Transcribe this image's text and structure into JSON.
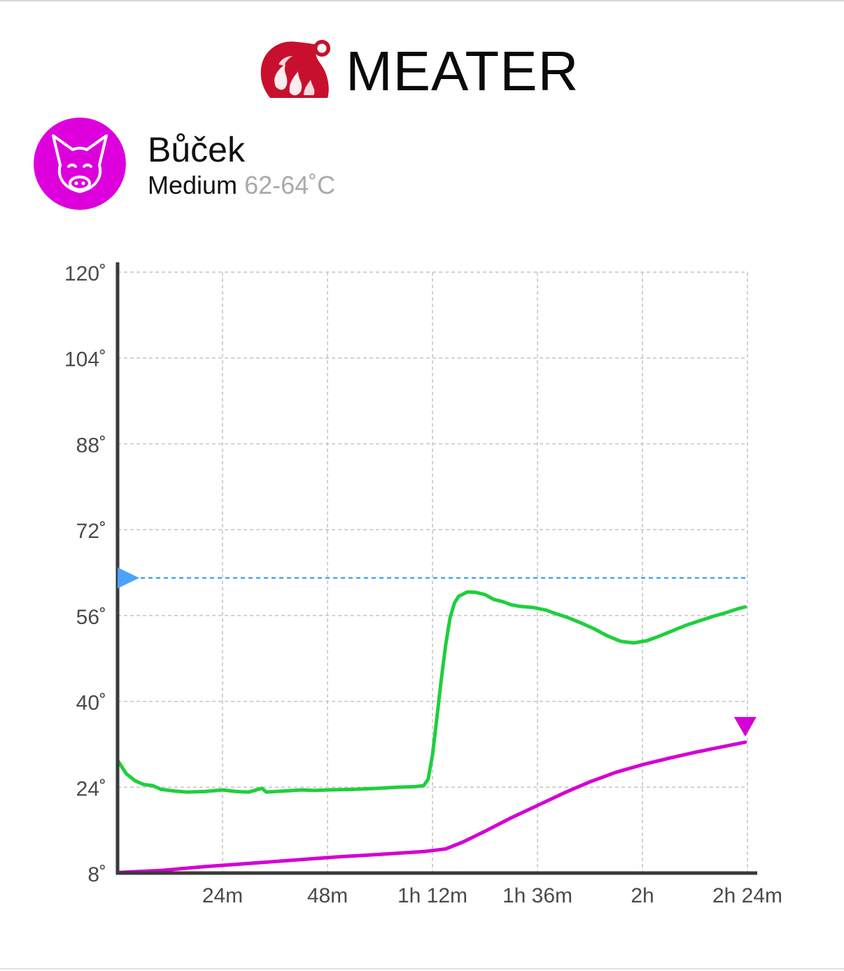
{
  "brand": {
    "name": "MEATER",
    "logo_icon": "meater-flame-logo-icon",
    "color": "#c8102e"
  },
  "meat": {
    "name": "Bůček",
    "doneness": "Medium",
    "range": "62-64˚C",
    "icon": "pig-face-icon",
    "color": "#dd00dd"
  },
  "chart_data": {
    "type": "line",
    "x_ticks": [
      "24m",
      "48m",
      "1h 12m",
      "1h 36m",
      "2h",
      "2h 24m"
    ],
    "y_ticks": [
      "8˚",
      "24˚",
      "40˚",
      "56˚",
      "72˚",
      "88˚",
      "104˚",
      "120˚"
    ],
    "xlim_minutes": [
      0,
      144
    ],
    "ylim": [
      8,
      120
    ],
    "grid": true,
    "target_temperature": 63,
    "series": [
      {
        "role": "ambient",
        "color": "#1fcf3d",
        "points": [
          [
            0,
            29
          ],
          [
            2,
            26.5
          ],
          [
            4,
            25.2
          ],
          [
            6,
            24.5
          ],
          [
            8,
            24.3
          ],
          [
            10,
            23.6
          ],
          [
            13,
            23.3
          ],
          [
            16,
            23.1
          ],
          [
            20,
            23.2
          ],
          [
            24,
            23.5
          ],
          [
            27,
            23.2
          ],
          [
            30,
            23.1
          ],
          [
            33,
            23.8
          ],
          [
            34,
            23.1
          ],
          [
            38,
            23.3
          ],
          [
            42,
            23.5
          ],
          [
            45,
            23.4
          ],
          [
            48,
            23.5
          ],
          [
            54,
            23.6
          ],
          [
            60,
            23.8
          ],
          [
            64,
            24.0
          ],
          [
            68,
            24.1
          ],
          [
            70,
            24.3
          ],
          [
            71,
            25.5
          ],
          [
            72,
            30
          ],
          [
            73,
            37
          ],
          [
            74,
            44
          ],
          [
            75,
            50.5
          ],
          [
            76,
            55.5
          ],
          [
            77,
            58.3
          ],
          [
            78,
            59.6
          ],
          [
            80,
            60.4
          ],
          [
            82,
            60.3
          ],
          [
            84,
            59.9
          ],
          [
            86,
            59.0
          ],
          [
            88,
            58.6
          ],
          [
            90,
            58.0
          ],
          [
            92,
            57.7
          ],
          [
            95,
            57.5
          ],
          [
            98,
            57.0
          ],
          [
            100,
            56.4
          ],
          [
            103,
            55.6
          ],
          [
            106,
            54.6
          ],
          [
            109,
            53.5
          ],
          [
            112,
            52.2
          ],
          [
            115,
            51.2
          ],
          [
            118,
            50.9
          ],
          [
            121,
            51.3
          ],
          [
            124,
            52.2
          ],
          [
            127,
            53.2
          ],
          [
            130,
            54.2
          ],
          [
            133,
            55.0
          ],
          [
            136,
            55.8
          ],
          [
            139,
            56.5
          ],
          [
            142,
            57.3
          ],
          [
            143.5,
            57.6
          ]
        ]
      },
      {
        "role": "internal",
        "color": "#d400d4",
        "points": [
          [
            0,
            8.1
          ],
          [
            10,
            8.5
          ],
          [
            20,
            9.2
          ],
          [
            30,
            9.8
          ],
          [
            40,
            10.4
          ],
          [
            50,
            11.0
          ],
          [
            60,
            11.5
          ],
          [
            70,
            12.0
          ],
          [
            75,
            12.5
          ],
          [
            79,
            13.8
          ],
          [
            84,
            15.8
          ],
          [
            90,
            18.3
          ],
          [
            96,
            20.6
          ],
          [
            102,
            22.9
          ],
          [
            108,
            25.0
          ],
          [
            114,
            26.8
          ],
          [
            120,
            28.2
          ],
          [
            126,
            29.4
          ],
          [
            132,
            30.5
          ],
          [
            138,
            31.5
          ],
          [
            143.5,
            32.4
          ]
        ]
      }
    ]
  }
}
